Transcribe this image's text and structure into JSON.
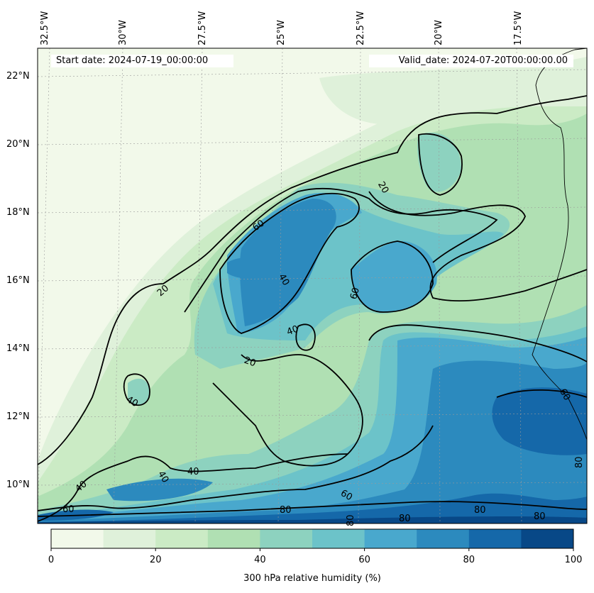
{
  "map": {
    "start_date_text": "Start date: 2024-07-19_00:00:00",
    "valid_date_text": "Valid_date: 2024-07-20T00:00:00.00",
    "longitude_labels": [
      "32.5°W",
      "30°W",
      "27.5°W",
      "25°W",
      "22.5°W",
      "20°W",
      "17.5°W"
    ],
    "latitude_labels": [
      "22°N",
      "20°N",
      "18°N",
      "16°N",
      "14°N",
      "12°N",
      "10°N"
    ],
    "contour_labels": [
      "20",
      "60",
      "40",
      "60",
      "20",
      "40",
      "40",
      "20",
      "40",
      "40",
      "40",
      "60",
      "60",
      "80",
      "60",
      "80",
      "80",
      "80",
      "80",
      "80"
    ],
    "colorbar": {
      "label": "300 hPa relative humidity (%)",
      "ticks": [
        "0",
        "20",
        "40",
        "60",
        "80",
        "100"
      ],
      "min": 0,
      "max": 100,
      "step": 10,
      "colors": [
        "#f2f9ea",
        "#dff1da",
        "#cbebc5",
        "#b0e0b3",
        "#8dd2bf",
        "#6cc3c9",
        "#49a8cd",
        "#2c8abe",
        "#1568a9",
        "#084887"
      ]
    },
    "field_colors": {
      "rh_0_10": "#f2f9ea",
      "rh_10_20": "#dff1da",
      "rh_20_30": "#cbebc5",
      "rh_30_40": "#b0e0b3",
      "rh_40_50": "#8dd2bf",
      "rh_50_60": "#6cc3c9",
      "rh_60_70": "#49a8cd",
      "rh_70_80": "#2c8abe",
      "rh_80_90": "#1568a9",
      "rh_90_100": "#084887",
      "contour": "#000000",
      "coastline": "#000000"
    }
  }
}
